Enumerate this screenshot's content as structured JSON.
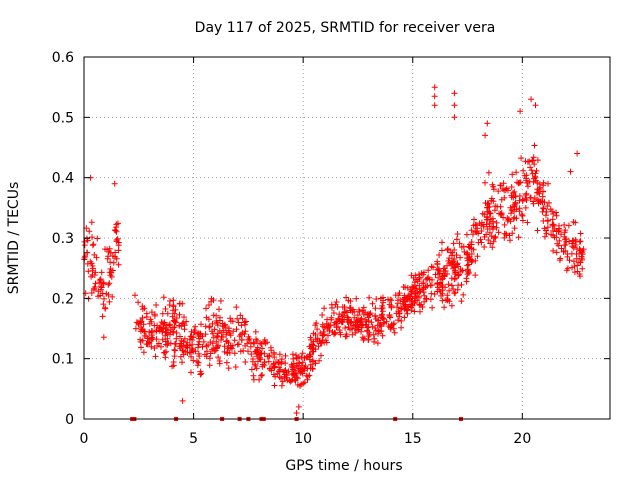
{
  "chart_data": {
    "type": "scatter",
    "title": "Day 117 of 2025, SRMTID for receiver vera",
    "xlabel": "GPS time / hours",
    "ylabel": "SRMTID / TECUs",
    "xlim": [
      0,
      24
    ],
    "ylim": [
      0,
      0.6
    ],
    "xticks": [
      "0",
      "5",
      "10",
      "15",
      "20"
    ],
    "xtick_values": [
      0,
      5,
      10,
      15,
      20
    ],
    "yticks": [
      "0",
      "0.1",
      "0.2",
      "0.3",
      "0.4",
      "0.5",
      "0.6"
    ],
    "ytick_values": [
      0,
      0.1,
      0.2,
      0.3,
      0.4,
      0.5,
      0.6
    ],
    "grid": true,
    "marker": "+",
    "color": "#ff0000",
    "trend": [
      {
        "x": 0.0,
        "y": 0.27,
        "spread": 0.07
      },
      {
        "x": 0.4,
        "y": 0.25,
        "spread": 0.09
      },
      {
        "x": 0.9,
        "y": 0.21,
        "spread": 0.09
      },
      {
        "x": 1.5,
        "y": 0.28,
        "spread": 0.07
      },
      {
        "x": 2.3,
        "y": 0.17,
        "spread": 0.05
      },
      {
        "x": 3.0,
        "y": 0.14,
        "spread": 0.06
      },
      {
        "x": 4.0,
        "y": 0.15,
        "spread": 0.08
      },
      {
        "x": 5.0,
        "y": 0.12,
        "spread": 0.06
      },
      {
        "x": 6.0,
        "y": 0.14,
        "spread": 0.08
      },
      {
        "x": 7.0,
        "y": 0.13,
        "spread": 0.08
      },
      {
        "x": 8.0,
        "y": 0.11,
        "spread": 0.05
      },
      {
        "x": 9.0,
        "y": 0.08,
        "spread": 0.04
      },
      {
        "x": 10.0,
        "y": 0.08,
        "spread": 0.04
      },
      {
        "x": 10.7,
        "y": 0.13,
        "spread": 0.05
      },
      {
        "x": 11.5,
        "y": 0.17,
        "spread": 0.05
      },
      {
        "x": 12.5,
        "y": 0.16,
        "spread": 0.05
      },
      {
        "x": 13.5,
        "y": 0.16,
        "spread": 0.05
      },
      {
        "x": 14.5,
        "y": 0.19,
        "spread": 0.05
      },
      {
        "x": 15.5,
        "y": 0.22,
        "spread": 0.05
      },
      {
        "x": 16.5,
        "y": 0.24,
        "spread": 0.09
      },
      {
        "x": 17.5,
        "y": 0.26,
        "spread": 0.06
      },
      {
        "x": 18.5,
        "y": 0.34,
        "spread": 0.09
      },
      {
        "x": 19.5,
        "y": 0.35,
        "spread": 0.08
      },
      {
        "x": 20.5,
        "y": 0.4,
        "spread": 0.09
      },
      {
        "x": 21.5,
        "y": 0.31,
        "spread": 0.06
      },
      {
        "x": 22.5,
        "y": 0.27,
        "spread": 0.07
      }
    ],
    "x_range_with_data": [
      0.0,
      22.8
    ],
    "gaps": [
      [
        1.6,
        2.3
      ]
    ],
    "outliers": [
      {
        "x": 16.0,
        "y": 0.55
      },
      {
        "x": 16.0,
        "y": 0.535
      },
      {
        "x": 16.0,
        "y": 0.52
      },
      {
        "x": 16.9,
        "y": 0.54
      },
      {
        "x": 16.9,
        "y": 0.52
      },
      {
        "x": 16.9,
        "y": 0.5
      },
      {
        "x": 18.4,
        "y": 0.49
      },
      {
        "x": 18.3,
        "y": 0.47
      },
      {
        "x": 20.4,
        "y": 0.53
      },
      {
        "x": 20.6,
        "y": 0.52
      },
      {
        "x": 19.9,
        "y": 0.51
      },
      {
        "x": 22.5,
        "y": 0.44
      },
      {
        "x": 22.2,
        "y": 0.41
      },
      {
        "x": 0.3,
        "y": 0.4
      },
      {
        "x": 1.4,
        "y": 0.39
      },
      {
        "x": 9.7,
        "y": 0.01
      },
      {
        "x": 9.8,
        "y": 0.02
      },
      {
        "x": 4.5,
        "y": 0.03
      }
    ],
    "zero_points_x": [
      2.2,
      2.3,
      4.2,
      6.3,
      7.1,
      7.5,
      8.1,
      8.2,
      9.7,
      14.2,
      17.2
    ],
    "point_count": 1400
  }
}
